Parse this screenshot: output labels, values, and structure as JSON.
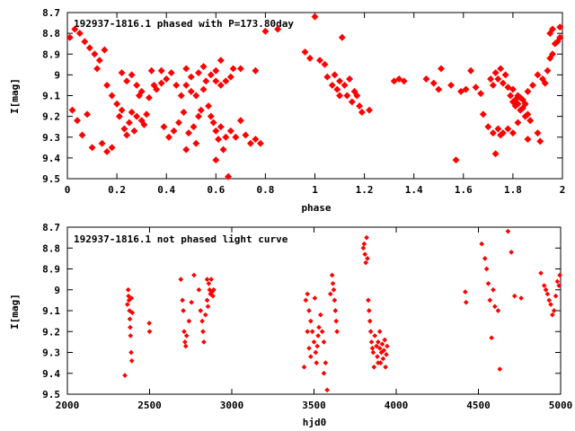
{
  "chart_data": [
    {
      "type": "scatter",
      "title": "192937-1816.1 phased with P=173.80day",
      "xlabel": "phase",
      "ylabel": "I[mag]",
      "xlim": [
        0,
        2
      ],
      "ylim": [
        8.7,
        9.5
      ],
      "y_inverted": true,
      "grid": false,
      "marker_color": "#ff0000",
      "x_ticks": [
        "0",
        "0.2",
        "0.4",
        "0.6",
        "0.8",
        "1",
        "1.2",
        "1.4",
        "1.6",
        "1.8",
        "2"
      ],
      "y_ticks": [
        "8.7",
        "8.8",
        "8.9",
        "9",
        "9.1",
        "9.2",
        "9.3",
        "9.4",
        "9.5"
      ],
      "points": [
        [
          0.01,
          8.82
        ],
        [
          0.03,
          8.78
        ],
        [
          0.05,
          8.8
        ],
        [
          0.07,
          8.84
        ],
        [
          0.09,
          8.87
        ],
        [
          0.11,
          8.9
        ],
        [
          0.13,
          8.93
        ],
        [
          0.15,
          8.88
        ],
        [
          0.02,
          9.17
        ],
        [
          0.04,
          9.22
        ],
        [
          0.06,
          9.29
        ],
        [
          0.08,
          9.19
        ],
        [
          0.1,
          9.35
        ],
        [
          0.14,
          9.33
        ],
        [
          0.16,
          9.37
        ],
        [
          0.18,
          9.35
        ],
        [
          0.12,
          8.97
        ],
        [
          0.16,
          9.05
        ],
        [
          0.18,
          9.1
        ],
        [
          0.2,
          9.14
        ],
        [
          0.21,
          9.2
        ],
        [
          0.22,
          9.17
        ],
        [
          0.23,
          9.26
        ],
        [
          0.24,
          9.29
        ],
        [
          0.25,
          9.23
        ],
        [
          0.26,
          9.18
        ],
        [
          0.27,
          9.27
        ],
        [
          0.28,
          9.2
        ],
        [
          0.29,
          9.1
        ],
        [
          0.3,
          9.22
        ],
        [
          0.31,
          9.24
        ],
        [
          0.32,
          9.19
        ],
        [
          0.22,
          8.99
        ],
        [
          0.24,
          9.03
        ],
        [
          0.26,
          9.0
        ],
        [
          0.28,
          9.05
        ],
        [
          0.3,
          9.08
        ],
        [
          0.33,
          9.11
        ],
        [
          0.34,
          8.98
        ],
        [
          0.35,
          9.05
        ],
        [
          0.36,
          9.07
        ],
        [
          0.38,
          9.04
        ],
        [
          0.4,
          9.02
        ],
        [
          0.42,
          8.99
        ],
        [
          0.44,
          9.05
        ],
        [
          0.46,
          9.1
        ],
        [
          0.48,
          9.05
        ],
        [
          0.5,
          9.01
        ],
        [
          0.38,
          8.98
        ],
        [
          0.39,
          9.25
        ],
        [
          0.41,
          9.3
        ],
        [
          0.43,
          9.27
        ],
        [
          0.45,
          9.23
        ],
        [
          0.47,
          9.18
        ],
        [
          0.49,
          9.28
        ],
        [
          0.51,
          9.25
        ],
        [
          0.52,
          9.33
        ],
        [
          0.53,
          9.2
        ],
        [
          0.54,
          9.17
        ],
        [
          0.55,
          9.07
        ],
        [
          0.56,
          9.03
        ],
        [
          0.57,
          9.15
        ],
        [
          0.58,
          9.2
        ],
        [
          0.59,
          9.23
        ],
        [
          0.6,
          9.27
        ],
        [
          0.61,
          9.31
        ],
        [
          0.62,
          9.25
        ],
        [
          0.63,
          9.36
        ],
        [
          0.64,
          9.3
        ],
        [
          0.65,
          9.49
        ],
        [
          0.66,
          9.27
        ],
        [
          0.68,
          9.3
        ],
        [
          0.7,
          9.22
        ],
        [
          0.72,
          9.29
        ],
        [
          0.74,
          9.33
        ],
        [
          0.76,
          9.31
        ],
        [
          0.78,
          9.33
        ],
        [
          0.6,
          9.41
        ],
        [
          0.48,
          9.36
        ],
        [
          0.53,
          8.99
        ],
        [
          0.55,
          8.96
        ],
        [
          0.58,
          9.0
        ],
        [
          0.6,
          8.98
        ],
        [
          0.62,
          8.93
        ],
        [
          0.66,
          9.01
        ],
        [
          0.67,
          8.97
        ],
        [
          0.7,
          8.97
        ],
        [
          0.76,
          8.98
        ],
        [
          0.8,
          8.79
        ],
        [
          0.85,
          8.78
        ],
        [
          0.6,
          9.03
        ],
        [
          0.62,
          9.05
        ],
        [
          0.64,
          9.03
        ],
        [
          0.48,
          8.97
        ],
        [
          0.5,
          9.08
        ],
        [
          0.52,
          9.1
        ],
        [
          1.0,
          8.72
        ],
        [
          1.02,
          8.93
        ],
        [
          1.04,
          8.95
        ],
        [
          1.05,
          9.01
        ],
        [
          1.07,
          9.05
        ],
        [
          1.09,
          9.07
        ],
        [
          1.1,
          9.1
        ],
        [
          1.11,
          8.82
        ],
        [
          1.12,
          9.05
        ],
        [
          1.13,
          9.1
        ],
        [
          1.14,
          9.02
        ],
        [
          1.15,
          9.13
        ],
        [
          1.16,
          9.08
        ],
        [
          1.18,
          9.15
        ],
        [
          1.19,
          9.18
        ],
        [
          1.22,
          9.17
        ],
        [
          0.96,
          8.89
        ],
        [
          0.98,
          8.92
        ],
        [
          1.08,
          9.0
        ],
        [
          1.1,
          9.03
        ],
        [
          1.17,
          9.1
        ],
        [
          1.32,
          9.03
        ],
        [
          1.34,
          9.02
        ],
        [
          1.36,
          9.03
        ],
        [
          1.45,
          9.02
        ],
        [
          1.48,
          9.04
        ],
        [
          1.5,
          9.07
        ],
        [
          1.51,
          8.97
        ],
        [
          1.55,
          9.05
        ],
        [
          1.57,
          9.41
        ],
        [
          1.59,
          9.08
        ],
        [
          1.61,
          9.07
        ],
        [
          1.63,
          8.98
        ],
        [
          1.65,
          9.06
        ],
        [
          1.67,
          9.09
        ],
        [
          1.68,
          9.19
        ],
        [
          1.7,
          9.25
        ],
        [
          1.72,
          9.28
        ],
        [
          1.73,
          9.38
        ],
        [
          1.74,
          9.26
        ],
        [
          1.75,
          9.29
        ],
        [
          1.76,
          9.28
        ],
        [
          1.78,
          9.26
        ],
        [
          1.8,
          9.28
        ],
        [
          1.82,
          9.23
        ],
        [
          1.71,
          9.02
        ],
        [
          1.72,
          9.05
        ],
        [
          1.73,
          8.99
        ],
        [
          1.74,
          9.02
        ],
        [
          1.75,
          8.97
        ],
        [
          1.76,
          9.04
        ],
        [
          1.77,
          9.0
        ],
        [
          1.78,
          9.06
        ],
        [
          1.79,
          9.1
        ],
        [
          1.8,
          9.13
        ],
        [
          1.81,
          9.15
        ],
        [
          1.82,
          9.1
        ],
        [
          1.83,
          9.17
        ],
        [
          1.84,
          9.12
        ],
        [
          1.85,
          9.14
        ],
        [
          1.86,
          9.19
        ],
        [
          1.8,
          9.07
        ],
        [
          1.81,
          9.12
        ],
        [
          1.82,
          9.14
        ],
        [
          1.83,
          9.11
        ],
        [
          1.84,
          9.16
        ],
        [
          1.85,
          9.2
        ],
        [
          1.86,
          9.08
        ],
        [
          1.87,
          9.22
        ],
        [
          1.88,
          9.05
        ],
        [
          1.9,
          9.0
        ],
        [
          1.92,
          9.02
        ],
        [
          1.93,
          9.04
        ],
        [
          1.94,
          8.98
        ],
        [
          1.95,
          8.92
        ],
        [
          1.96,
          8.9
        ],
        [
          1.97,
          8.85
        ],
        [
          1.98,
          8.84
        ],
        [
          1.96,
          8.78
        ],
        [
          1.95,
          8.8
        ],
        [
          1.99,
          8.77
        ],
        [
          1.99,
          8.82
        ],
        [
          1.9,
          9.28
        ],
        [
          1.91,
          9.32
        ],
        [
          1.86,
          9.31
        ]
      ]
    },
    {
      "type": "scatter",
      "title": "192937-1816.1 not phased light curve",
      "xlabel": "hjd0",
      "ylabel": "I[mag]",
      "xlim": [
        2000,
        5000
      ],
      "ylim": [
        8.7,
        9.5
      ],
      "y_inverted": true,
      "grid": false,
      "marker_color": "#ff0000",
      "x_ticks": [
        "2000",
        "2500",
        "3000",
        "3500",
        "4000",
        "4500",
        "5000"
      ],
      "y_ticks": [
        "8.7",
        "8.8",
        "8.9",
        "9",
        "9.1",
        "9.2",
        "9.3",
        "9.4",
        "9.5"
      ],
      "points": [
        [
          2350,
          9.41
        ],
        [
          2365,
          9.07
        ],
        [
          2370,
          9.0
        ],
        [
          2372,
          9.03
        ],
        [
          2375,
          9.05
        ],
        [
          2378,
          9.1
        ],
        [
          2380,
          9.14
        ],
        [
          2382,
          9.18
        ],
        [
          2384,
          9.22
        ],
        [
          2388,
          9.3
        ],
        [
          2392,
          9.34
        ],
        [
          2395,
          9.11
        ],
        [
          2390,
          9.04
        ],
        [
          2498,
          9.16
        ],
        [
          2500,
          9.2
        ],
        [
          2690,
          8.95
        ],
        [
          2700,
          9.05
        ],
        [
          2705,
          9.1
        ],
        [
          2710,
          9.2
        ],
        [
          2715,
          9.25
        ],
        [
          2720,
          9.27
        ],
        [
          2725,
          9.22
        ],
        [
          2740,
          9.15
        ],
        [
          2755,
          9.06
        ],
        [
          2770,
          8.93
        ],
        [
          2800,
          9.0
        ],
        [
          2810,
          9.1
        ],
        [
          2820,
          9.15
        ],
        [
          2825,
          9.2
        ],
        [
          2830,
          9.25
        ],
        [
          2840,
          9.12
        ],
        [
          2850,
          9.05
        ],
        [
          2860,
          8.97
        ],
        [
          2865,
          9.0
        ],
        [
          2870,
          9.02
        ],
        [
          2875,
          8.95
        ],
        [
          2880,
          9.01
        ],
        [
          2885,
          9.03
        ],
        [
          2890,
          9.0
        ],
        [
          2850,
          8.95
        ],
        [
          2855,
          9.08
        ],
        [
          3440,
          9.37
        ],
        [
          3450,
          9.05
        ],
        [
          3460,
          9.02
        ],
        [
          3470,
          9.1
        ],
        [
          3480,
          9.15
        ],
        [
          3490,
          9.2
        ],
        [
          3500,
          9.25
        ],
        [
          3510,
          9.3
        ],
        [
          3515,
          9.35
        ],
        [
          3520,
          9.27
        ],
        [
          3525,
          9.22
        ],
        [
          3530,
          9.18
        ],
        [
          3540,
          9.12
        ],
        [
          3550,
          9.2
        ],
        [
          3560,
          9.25
        ],
        [
          3570,
          9.35
        ],
        [
          3580,
          9.48
        ],
        [
          3600,
          9.02
        ],
        [
          3610,
          8.93
        ],
        [
          3615,
          8.97
        ],
        [
          3620,
          9.0
        ],
        [
          3625,
          9.05
        ],
        [
          3630,
          9.1
        ],
        [
          3635,
          9.15
        ],
        [
          3640,
          9.2
        ],
        [
          3460,
          9.2
        ],
        [
          3470,
          9.28
        ],
        [
          3480,
          9.32
        ],
        [
          3505,
          9.04
        ],
        [
          3560,
          9.4
        ],
        [
          3800,
          8.8
        ],
        [
          3805,
          8.78
        ],
        [
          3810,
          8.83
        ],
        [
          3815,
          8.87
        ],
        [
          3820,
          8.75
        ],
        [
          3825,
          8.85
        ],
        [
          3830,
          9.05
        ],
        [
          3835,
          9.1
        ],
        [
          3840,
          9.15
        ],
        [
          3845,
          9.2
        ],
        [
          3850,
          9.25
        ],
        [
          3855,
          9.28
        ],
        [
          3860,
          9.3
        ],
        [
          3865,
          9.37
        ],
        [
          3870,
          9.22
        ],
        [
          3880,
          9.27
        ],
        [
          3885,
          9.32
        ],
        [
          3890,
          9.25
        ],
        [
          3900,
          9.28
        ],
        [
          3905,
          9.35
        ],
        [
          3910,
          9.3
        ],
        [
          3915,
          9.26
        ],
        [
          3920,
          9.33
        ],
        [
          3925,
          9.29
        ],
        [
          3930,
          9.24
        ],
        [
          3935,
          9.37
        ],
        [
          3940,
          9.31
        ],
        [
          3945,
          9.27
        ],
        [
          3890,
          9.35
        ],
        [
          3900,
          9.2
        ],
        [
          4420,
          9.01
        ],
        [
          4425,
          9.06
        ],
        [
          4520,
          8.78
        ],
        [
          4540,
          8.85
        ],
        [
          4550,
          8.9
        ],
        [
          4560,
          8.97
        ],
        [
          4570,
          9.05
        ],
        [
          4580,
          9.23
        ],
        [
          4590,
          9.0
        ],
        [
          4600,
          9.08
        ],
        [
          4620,
          9.1
        ],
        [
          4630,
          9.38
        ],
        [
          4680,
          8.72
        ],
        [
          4700,
          8.82
        ],
        [
          4720,
          9.03
        ],
        [
          4760,
          9.04
        ],
        [
          4880,
          8.92
        ],
        [
          4900,
          8.98
        ],
        [
          4910,
          9.0
        ],
        [
          4920,
          9.02
        ],
        [
          4930,
          9.05
        ],
        [
          4940,
          9.07
        ],
        [
          4950,
          9.12
        ],
        [
          4960,
          9.1
        ],
        [
          4970,
          9.03
        ],
        [
          4980,
          8.96
        ],
        [
          4990,
          8.98
        ],
        [
          4995,
          8.93
        ]
      ]
    }
  ]
}
